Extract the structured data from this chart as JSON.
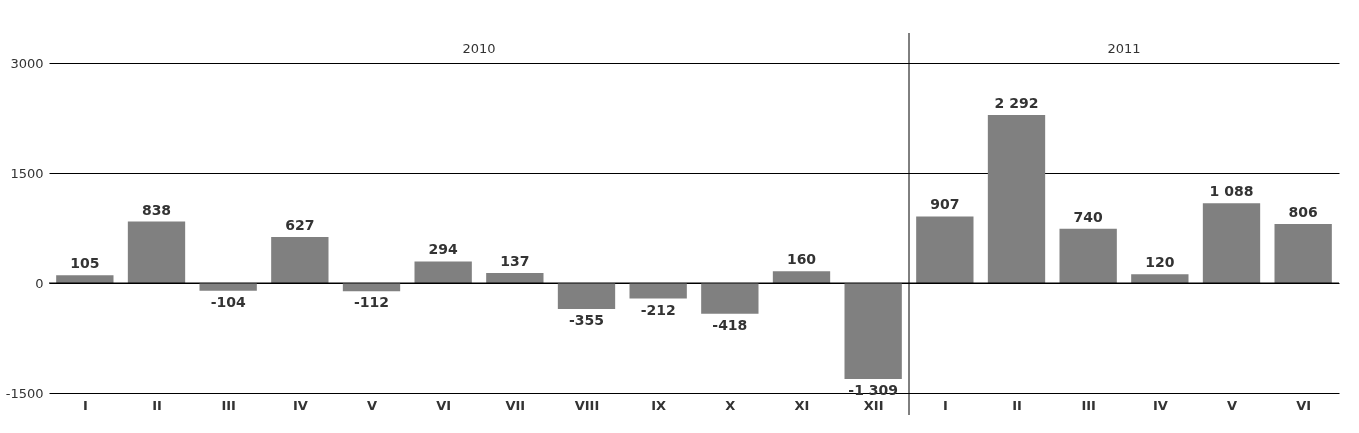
{
  "chart_data": {
    "type": "bar",
    "categories": [
      "I",
      "II",
      "III",
      "IV",
      "V",
      "VI",
      "VII",
      "VIII",
      "IX",
      "X",
      "XI",
      "XII",
      "I",
      "II",
      "III",
      "IV",
      "V",
      "VI"
    ],
    "values": [
      105,
      838,
      -104,
      627,
      -112,
      294,
      137,
      -355,
      -212,
      -418,
      160,
      -1309,
      907,
      2292,
      740,
      120,
      1088,
      806
    ],
    "value_labels": [
      "105",
      "838",
      "-104",
      "627",
      "-112",
      "294",
      "137",
      "-355",
      "-212",
      "-418",
      "160",
      "-1 309",
      "907",
      "2 292",
      "740",
      "120",
      "1 088",
      "806"
    ],
    "color": "#808080",
    "ylim": [
      -1500,
      3000
    ],
    "yticks": [
      {
        "value": -1500,
        "label": "-1500"
      },
      0,
      {
        "value": 1500,
        "label": "1500"
      },
      {
        "value": 3000,
        "label": "3000"
      }
    ],
    "grid": "y",
    "annotations": [
      "2010",
      "2011"
    ]
  }
}
